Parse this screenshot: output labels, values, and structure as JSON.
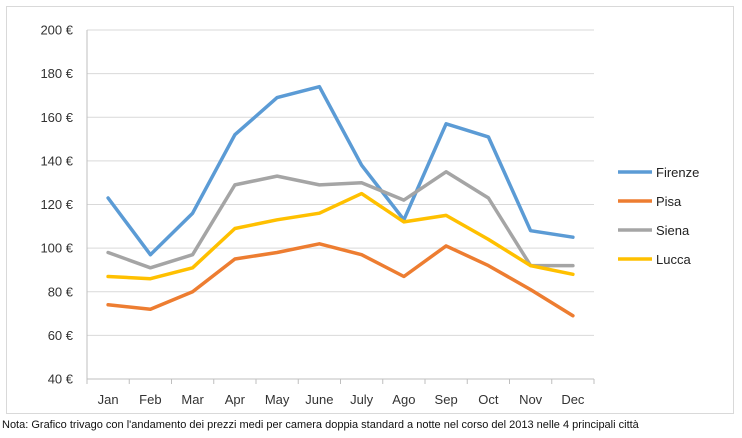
{
  "chart_data": {
    "type": "line",
    "title": "",
    "xlabel": "",
    "ylabel": "",
    "categories": [
      "Jan",
      "Feb",
      "Mar",
      "Apr",
      "May",
      "June",
      "July",
      "Ago",
      "Sep",
      "Oct",
      "Nov",
      "Dec"
    ],
    "ylim": [
      40,
      200
    ],
    "yticks": [
      40,
      60,
      80,
      100,
      120,
      140,
      160,
      180,
      200
    ],
    "ytick_labels": [
      "40 €",
      "60 €",
      "80 €",
      "100 €",
      "120 €",
      "140 €",
      "160 €",
      "180 €",
      "200 €"
    ],
    "grid": true,
    "legend_position": "right",
    "series": [
      {
        "name": "Firenze",
        "color": "#5b9bd5",
        "values": [
          123,
          97,
          116,
          152,
          169,
          174,
          138,
          113,
          157,
          151,
          108,
          105
        ]
      },
      {
        "name": "Pisa",
        "color": "#ed7d31",
        "values": [
          74,
          72,
          80,
          95,
          98,
          102,
          97,
          87,
          101,
          92,
          81,
          69
        ]
      },
      {
        "name": "Siena",
        "color": "#a5a5a5",
        "values": [
          98,
          91,
          97,
          129,
          133,
          129,
          130,
          122,
          135,
          123,
          92,
          92
        ]
      },
      {
        "name": "Lucca",
        "color": "#ffc000",
        "values": [
          87,
          86,
          91,
          109,
          113,
          116,
          125,
          112,
          115,
          104,
          92,
          88
        ]
      }
    ]
  },
  "note": "Nota: Grafico trivago con l'andamento dei prezzi medi per camera doppia standard a notte nel corso del 2013 nelle 4 principali città"
}
